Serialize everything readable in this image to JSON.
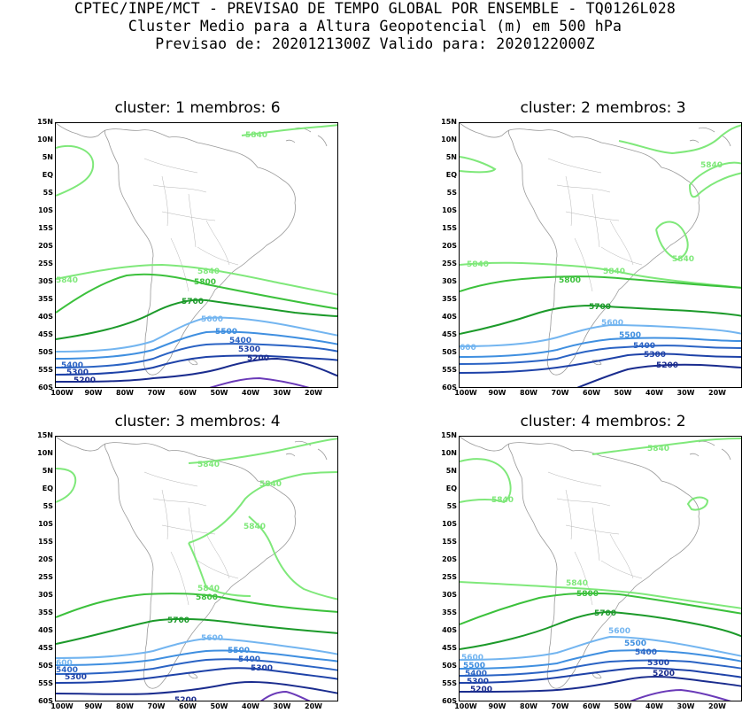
{
  "header": {
    "line1": "CPTEC/INPE/MCT - PREVISAO DE TEMPO GLOBAL POR ENSEMBLE - TQ0126L028",
    "line2": "Cluster Medio para a Altura Geopotencial (m) em 500 hPa",
    "line3": "Previsao de: 2020121300Z   Valido para: 2020122000Z"
  },
  "axes": {
    "lat_labels": [
      "15N",
      "10N",
      "5N",
      "EQ",
      "5S",
      "10S",
      "15S",
      "20S",
      "25S",
      "30S",
      "35S",
      "40S",
      "45S",
      "50S",
      "55S",
      "60S"
    ],
    "lon_labels": [
      "100W",
      "90W",
      "80W",
      "70W",
      "60W",
      "50W",
      "40W",
      "30W",
      "20W"
    ]
  },
  "colors": {
    "c5840": "#7fe87a",
    "c5800": "#3cc13c",
    "c5700": "#1c9a2a",
    "c5600": "#73b5f0",
    "c5500": "#3f8fe0",
    "c5400": "#2a63c4",
    "c5300": "#1e42a8",
    "c5200": "#1a2c8e",
    "c5100": "#6a3ab8",
    "coast": "#999999"
  },
  "panels": [
    {
      "title": "cluster: 1   membros: 6",
      "labels": {
        "l1": "5840",
        "l2": "5840",
        "l3": "5840",
        "l4": "5800",
        "l5": "5700",
        "l6": "5600",
        "l7": "5500",
        "l8": "5400",
        "l9": "5300",
        "l10": "5200",
        "l11": "5400",
        "l12": "5300",
        "l13": "5200"
      }
    },
    {
      "title": "cluster: 2   membros: 3",
      "labels": {
        "l1": "5840",
        "l2": "5840",
        "l3": "5840",
        "l4": "5840",
        "l5": "5800",
        "l6": "5700",
        "l7": "5600",
        "l8": "5500",
        "l9": "5400",
        "l10": "5300",
        "l11": "5200",
        "l12": "600"
      }
    },
    {
      "title": "cluster: 3   membros: 4",
      "labels": {
        "l1": "5840",
        "l2": "5840",
        "l3": "5840",
        "l4": "5840",
        "l5": "5800",
        "l6": "5700",
        "l7": "5600",
        "l8": "5500",
        "l9": "5400",
        "l10": "5300",
        "l11": "600",
        "l12": "5400",
        "l13": "5300",
        "l14": "5200"
      }
    },
    {
      "title": "cluster: 4   membros: 2",
      "labels": {
        "l1": "5840",
        "l2": "5840",
        "l3": "5840",
        "l4": "5800",
        "l5": "5700",
        "l6": "5600",
        "l7": "5500",
        "l8": "5400",
        "l9": "5300",
        "l10": "5200",
        "l11": "5600",
        "l12": "5500",
        "l13": "5400",
        "l14": "5300",
        "l15": "5200"
      }
    }
  ]
}
